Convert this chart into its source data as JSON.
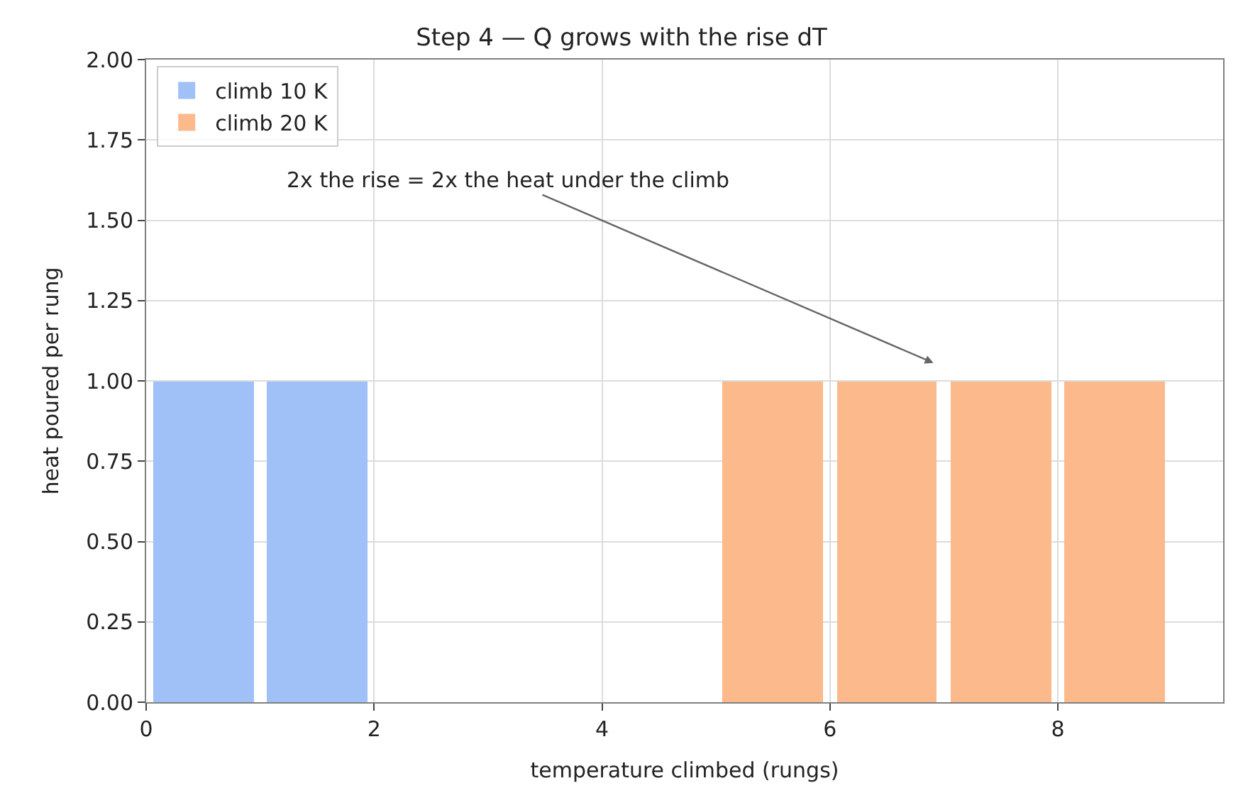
{
  "chart_data": {
    "type": "bar",
    "title": "Step 4 — Q grows with the rise dT",
    "xlabel": "temperature climbed (rungs)",
    "ylabel": "heat poured per rung",
    "series": [
      {
        "name": "climb 10 K",
        "color": "#a0c0f8",
        "x": [
          0.5,
          1.5
        ],
        "values": [
          1.0,
          1.0
        ]
      },
      {
        "name": "climb 20 K",
        "color": "#fbb98c",
        "x": [
          5.5,
          6.5,
          7.5,
          8.5
        ],
        "values": [
          1.0,
          1.0,
          1.0,
          1.0
        ]
      }
    ],
    "xlim": [
      0,
      9.45
    ],
    "xticks": [
      0,
      2,
      4,
      6,
      8
    ],
    "ylim": [
      0,
      2
    ],
    "yticks": [
      {
        "value": 0,
        "label": "0.00"
      },
      {
        "value": 0.25,
        "label": "0.25"
      },
      {
        "value": 0.5,
        "label": "0.50"
      },
      {
        "value": 0.75,
        "label": "0.75"
      },
      {
        "value": 1,
        "label": "1.00"
      },
      {
        "value": 1.25,
        "label": "1.25"
      },
      {
        "value": 1.5,
        "label": "1.50"
      },
      {
        "value": 1.75,
        "label": "1.75"
      },
      {
        "value": 2,
        "label": "2.00"
      }
    ],
    "annotations": [
      "2x the rise = 2x the heat under the climb"
    ],
    "grid": true,
    "legend": "top left"
  }
}
